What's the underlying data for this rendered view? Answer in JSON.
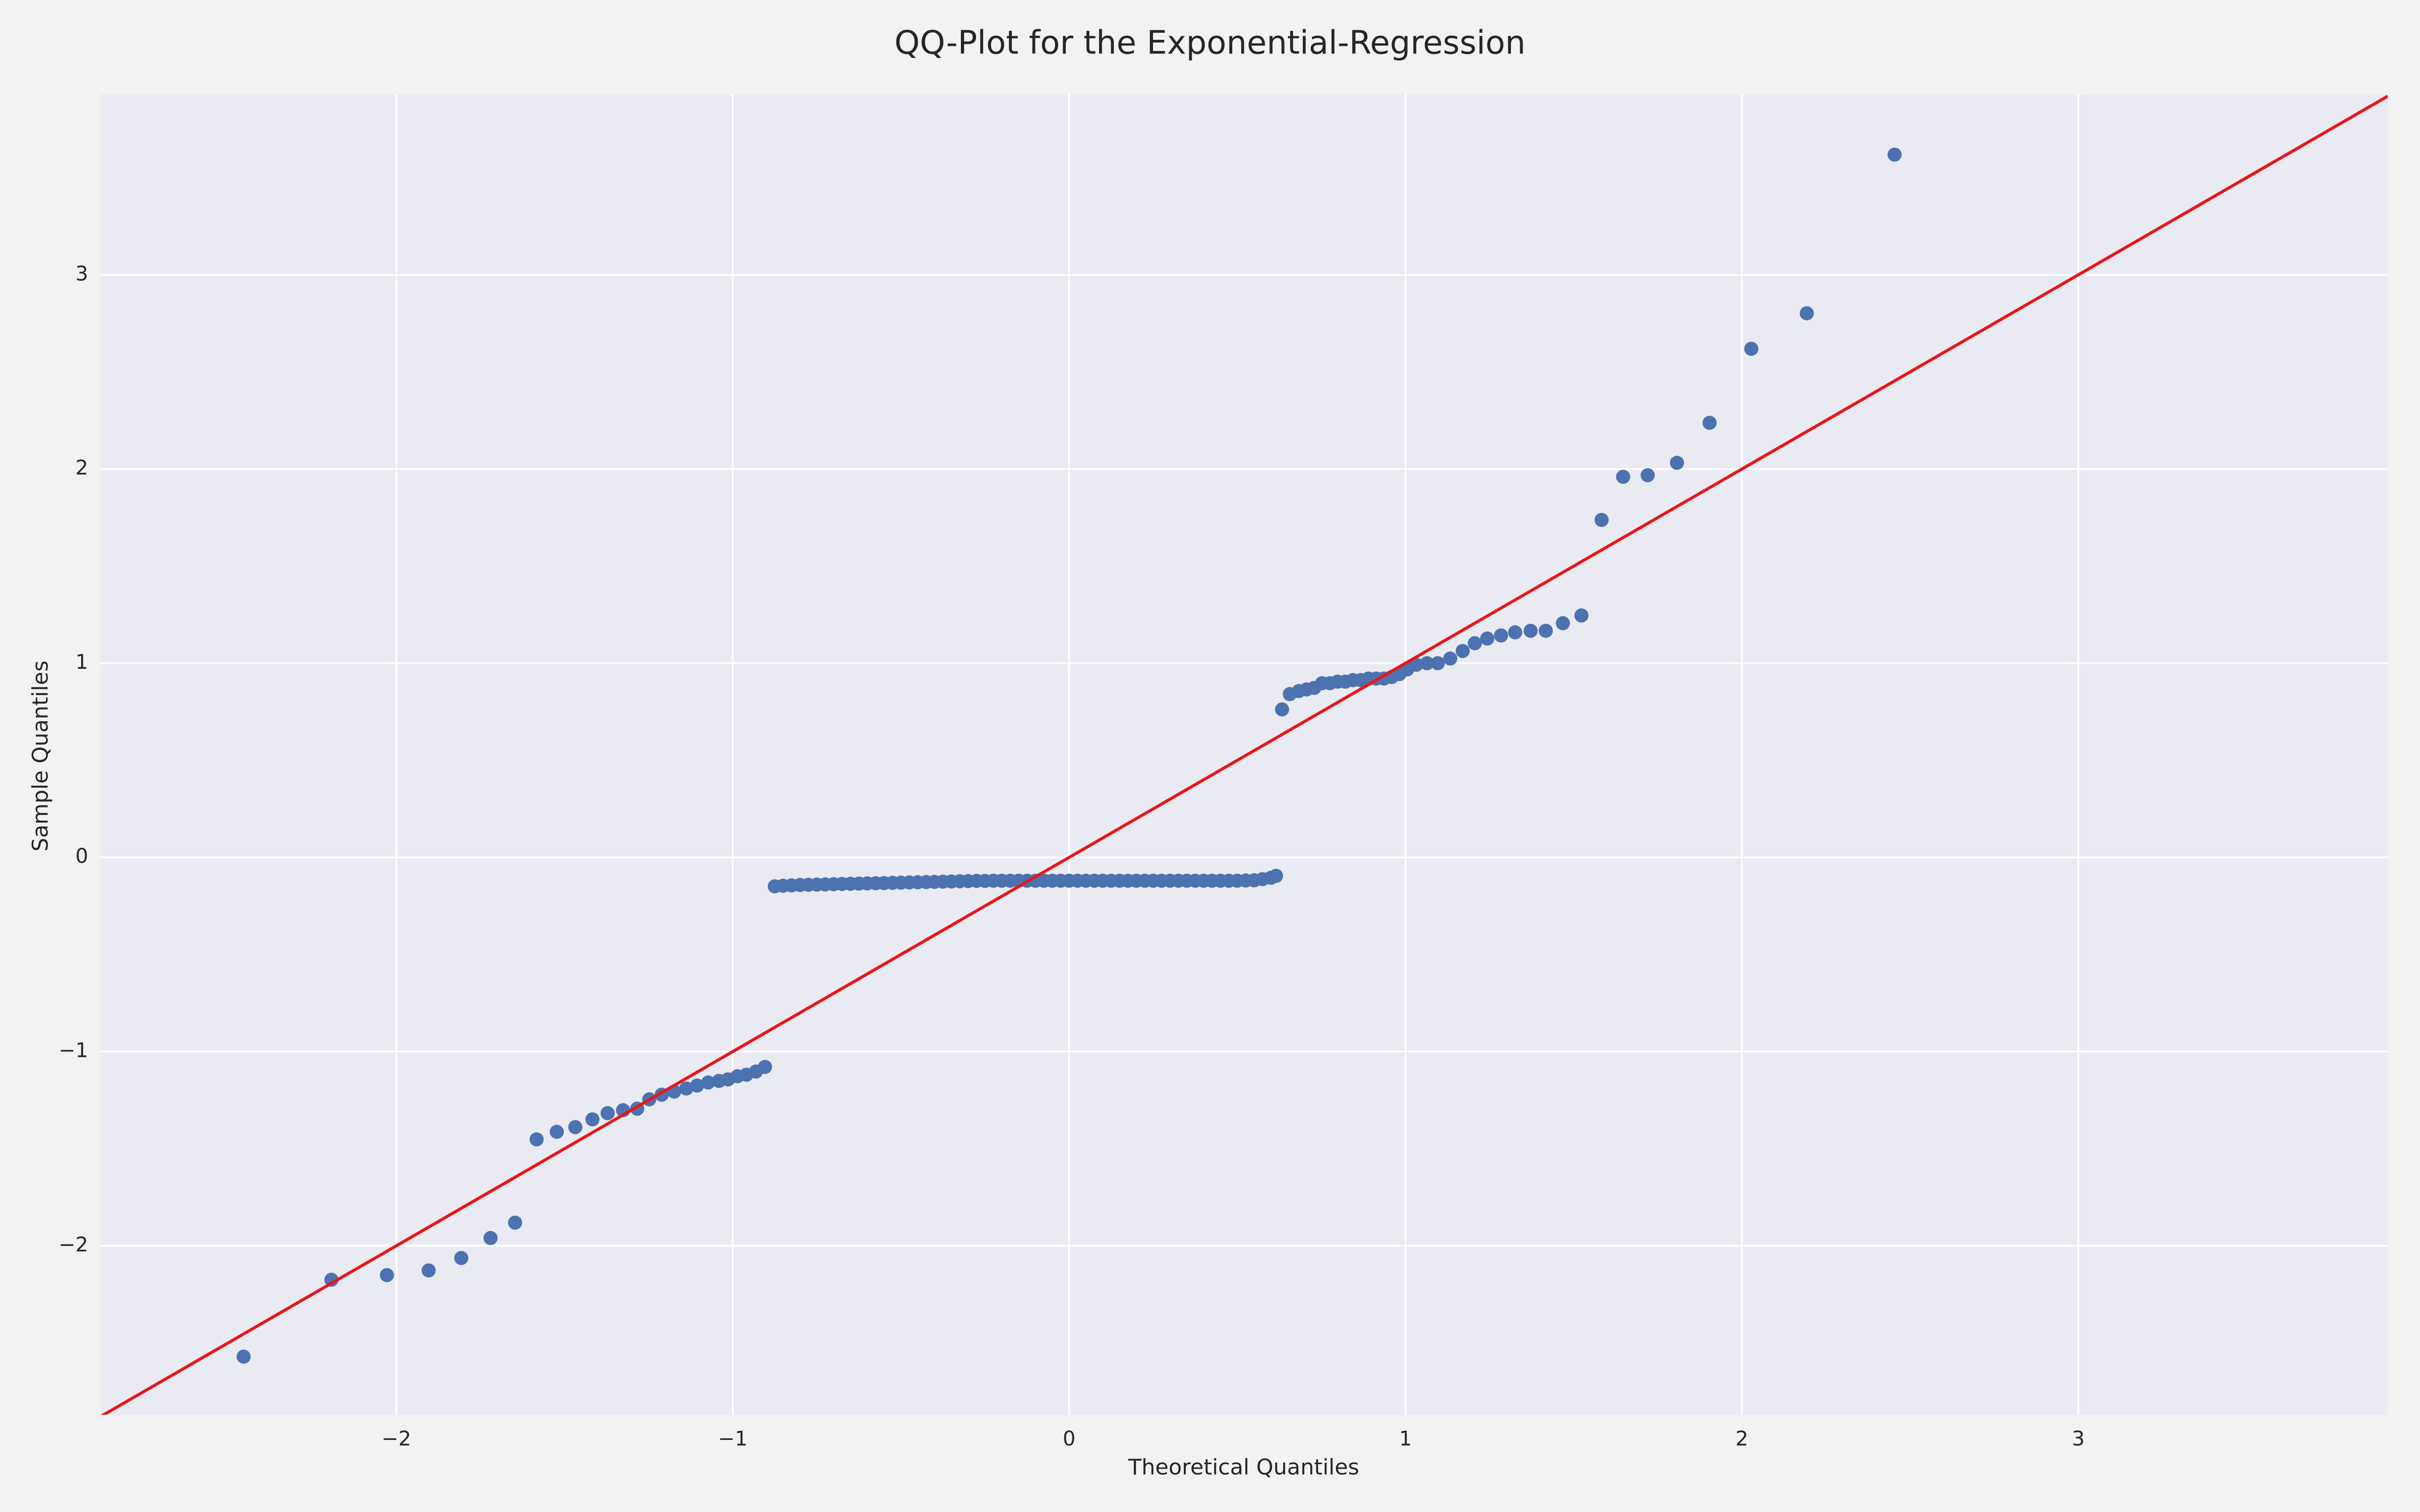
{
  "chart_data": {
    "type": "scatter",
    "title": "QQ-Plot for the Exponential-Regression",
    "xlabel": "Theoretical Quantiles",
    "ylabel": "Sample Quantiles",
    "xlim": [
      -2.88,
      3.92
    ],
    "ylim": [
      -2.87,
      3.93
    ],
    "xticks": [
      {
        "value": -2,
        "label": "−2"
      },
      {
        "value": -1,
        "label": "−1"
      },
      0,
      1,
      2,
      3
    ],
    "yticks": [
      {
        "value": -2,
        "label": "−2"
      },
      {
        "value": -1,
        "label": "−1"
      },
      0,
      1,
      2,
      3
    ],
    "grid": true,
    "color": "#4c72b0",
    "x": [
      -2.454,
      -2.193,
      -2.028,
      -1.904,
      -1.807,
      -1.72,
      -1.647,
      -1.583,
      -1.523,
      -1.468,
      -1.417,
      -1.372,
      -1.326,
      -1.284,
      -1.248,
      -1.211,
      -1.174,
      -1.138,
      -1.106,
      -1.073,
      -1.041,
      -1.014,
      -0.986,
      -0.959,
      -0.931,
      -0.904,
      -0.875,
      -0.85,
      -0.825,
      -0.8,
      -0.775,
      -0.75,
      -0.725,
      -0.7,
      -0.675,
      -0.65,
      -0.625,
      -0.6,
      -0.575,
      -0.55,
      -0.525,
      -0.5,
      -0.475,
      -0.45,
      -0.425,
      -0.4,
      -0.375,
      -0.35,
      -0.325,
      -0.3,
      -0.275,
      -0.25,
      -0.225,
      -0.2,
      -0.175,
      -0.15,
      -0.125,
      -0.1,
      -0.075,
      -0.05,
      -0.025,
      0,
      0.025,
      0.05,
      0.075,
      0.1,
      0.125,
      0.15,
      0.175,
      0.2,
      0.225,
      0.25,
      0.275,
      0.3,
      0.325,
      0.35,
      0.375,
      0.4,
      0.425,
      0.45,
      0.475,
      0.5,
      0.525,
      0.55,
      0.575,
      0.6,
      0.615,
      0.633,
      0.656,
      0.683,
      0.706,
      0.729,
      0.752,
      0.775,
      0.798,
      0.821,
      0.844,
      0.867,
      0.89,
      0.913,
      0.936,
      0.959,
      0.982,
      1.005,
      1.032,
      1.064,
      1.096,
      1.133,
      1.17,
      1.206,
      1.243,
      1.284,
      1.326,
      1.372,
      1.417,
      1.468,
      1.523,
      1.583,
      1.647,
      1.72,
      1.807,
      1.904,
      2.028,
      2.193,
      2.454
    ],
    "y": [
      -2.571,
      -2.175,
      -2.151,
      -2.127,
      -2.063,
      -1.96,
      -1.881,
      -1.452,
      -1.413,
      -1.389,
      -1.349,
      -1.317,
      -1.302,
      -1.294,
      -1.246,
      -1.222,
      -1.206,
      -1.19,
      -1.175,
      -1.159,
      -1.151,
      -1.143,
      -1.127,
      -1.119,
      -1.103,
      -1.079,
      -0.149,
      -0.146,
      -0.144,
      -0.142,
      -0.141,
      -0.14,
      -0.139,
      -0.138,
      -0.137,
      -0.136,
      -0.135,
      -0.134,
      -0.133,
      -0.132,
      -0.131,
      -0.13,
      -0.129,
      -0.128,
      -0.127,
      -0.126,
      -0.125,
      -0.124,
      -0.123,
      -0.122,
      -0.121,
      -0.121,
      -0.12,
      -0.12,
      -0.12,
      -0.12,
      -0.12,
      -0.12,
      -0.12,
      -0.12,
      -0.12,
      -0.12,
      -0.12,
      -0.12,
      -0.12,
      -0.12,
      -0.12,
      -0.12,
      -0.12,
      -0.12,
      -0.12,
      -0.12,
      -0.12,
      -0.12,
      -0.12,
      -0.12,
      -0.12,
      -0.12,
      -0.12,
      -0.12,
      -0.12,
      -0.12,
      -0.119,
      -0.118,
      -0.112,
      -0.105,
      -0.095,
      0.762,
      0.841,
      0.857,
      0.865,
      0.873,
      0.897,
      0.897,
      0.905,
      0.905,
      0.913,
      0.913,
      0.921,
      0.921,
      0.921,
      0.929,
      0.944,
      0.968,
      0.992,
      1.0,
      1.0,
      1.024,
      1.063,
      1.103,
      1.127,
      1.143,
      1.159,
      1.167,
      1.167,
      1.206,
      1.246,
      1.738,
      1.96,
      1.968,
      2.032,
      2.238,
      2.619,
      2.802,
      3.619
    ],
    "reference_line": {
      "x": [
        -2.88,
        3.92
      ],
      "y": [
        -2.88,
        3.92
      ],
      "color": "#e8161b"
    }
  }
}
